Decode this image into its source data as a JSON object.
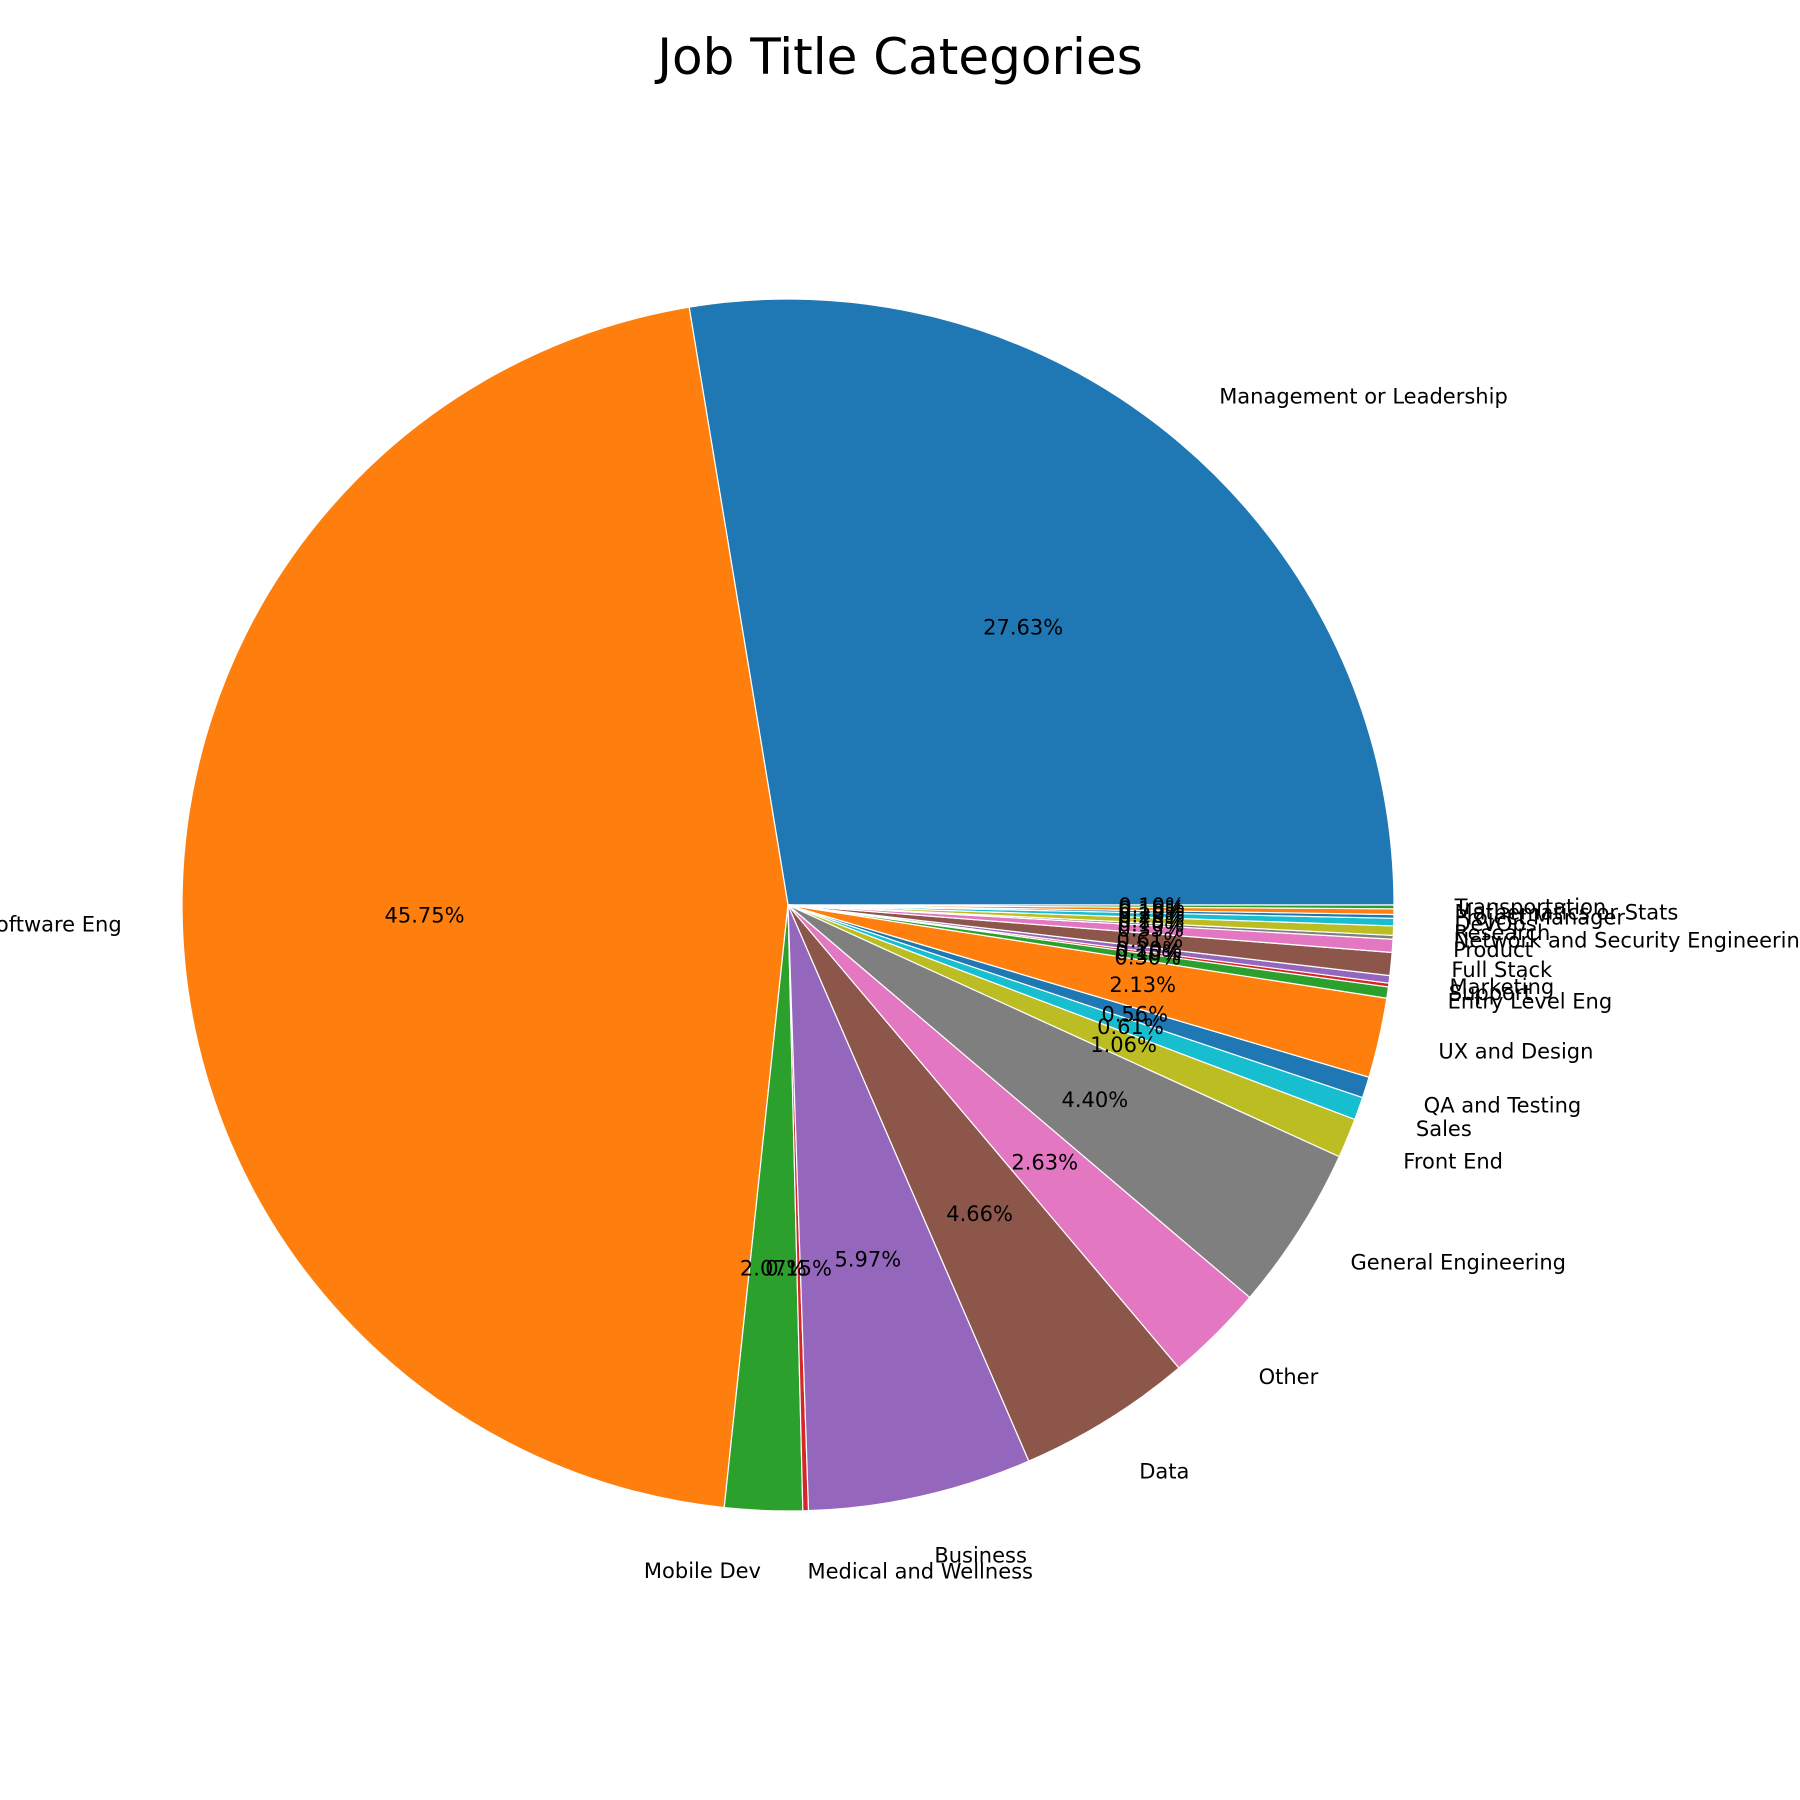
{
  "chart_data": {
    "type": "pie",
    "title": "Job Title Categories",
    "start_angle_deg": 0,
    "direction": "counterclockwise",
    "slices": [
      {
        "label": "Management or Leadership",
        "value": 27.63,
        "pct_label": "27.63%",
        "color": "#1f77b4"
      },
      {
        "label": "Software Eng",
        "value": 45.75,
        "pct_label": "45.75%",
        "color": "#ff7f0e"
      },
      {
        "label": "Mobile Dev",
        "value": 2.07,
        "pct_label": "2.07%",
        "color": "#2ca02c"
      },
      {
        "label": "Medical and Wellness",
        "value": 0.15,
        "pct_label": "0.15%",
        "color": "#d62728"
      },
      {
        "label": "Business",
        "value": 5.97,
        "pct_label": "5.97%",
        "color": "#9467bd"
      },
      {
        "label": "Data",
        "value": 4.66,
        "pct_label": "4.66%",
        "color": "#8c564b"
      },
      {
        "label": "Other",
        "value": 2.63,
        "pct_label": "2.63%",
        "color": "#e377c2"
      },
      {
        "label": "General Engineering",
        "value": 4.4,
        "pct_label": "4.40%",
        "color": "#7f7f7f"
      },
      {
        "label": "Front End",
        "value": 1.06,
        "pct_label": "1.06%",
        "color": "#bcbd22"
      },
      {
        "label": "Sales",
        "value": 0.61,
        "pct_label": "0.61%",
        "color": "#17becf"
      },
      {
        "label": "QA and Testing",
        "value": 0.56,
        "pct_label": "0.56%",
        "color": "#1f77b4"
      },
      {
        "label": "UX and Design",
        "value": 2.13,
        "pct_label": "2.13%",
        "color": "#ff7f0e"
      },
      {
        "label": "Entry Level Eng",
        "value": 0.3,
        "pct_label": "0.30%",
        "color": "#2ca02c"
      },
      {
        "label": "Support",
        "value": 0.1,
        "pct_label": "0.10%",
        "color": "#d62728"
      },
      {
        "label": "Marketing",
        "value": 0.2,
        "pct_label": "0.20%",
        "color": "#9467bd"
      },
      {
        "label": "Full Stack",
        "value": 0.61,
        "pct_label": "0.61%",
        "color": "#8c564b"
      },
      {
        "label": "Product",
        "value": 0.35,
        "pct_label": "0.35%",
        "color": "#e377c2"
      },
      {
        "label": "Network and Security Engineering",
        "value": 0.1,
        "pct_label": "0.10%",
        "color": "#7f7f7f"
      },
      {
        "label": "Research",
        "value": 0.25,
        "pct_label": "0.25%",
        "color": "#bcbd22"
      },
      {
        "label": "DevOps",
        "value": 0.2,
        "pct_label": "0.20%",
        "color": "#17becf"
      },
      {
        "label": "Project Manager",
        "value": 0.1,
        "pct_label": "0.10%",
        "color": "#1f77b4"
      },
      {
        "label": "Mathematics or Stats",
        "value": 0.15,
        "pct_label": "0.15%",
        "color": "#ff7f0e"
      },
      {
        "label": "Transportation",
        "value": 0.1,
        "pct_label": "0.10%",
        "color": "#2ca02c"
      }
    ]
  }
}
